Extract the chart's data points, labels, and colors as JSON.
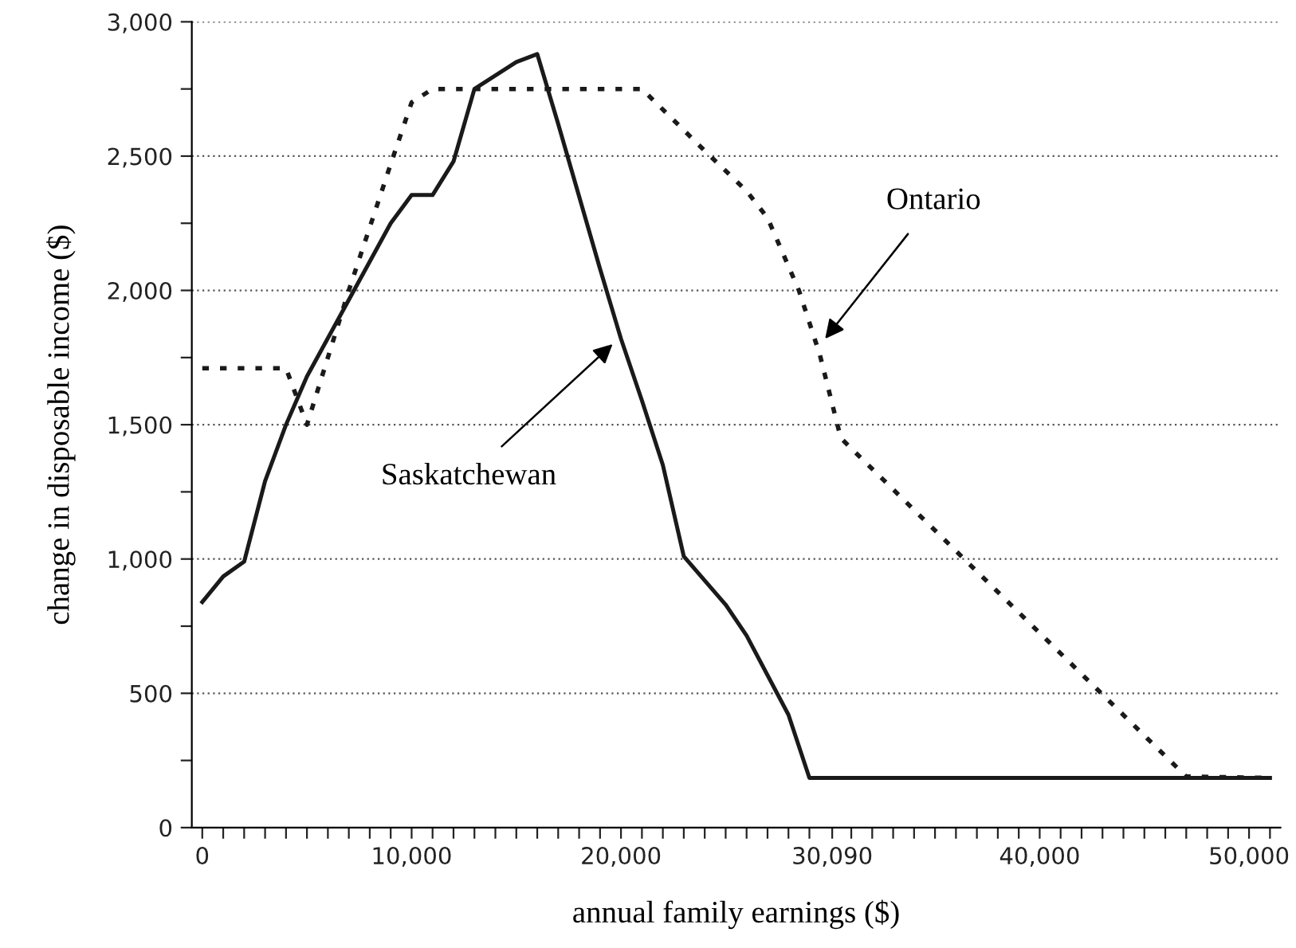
{
  "chart_data": {
    "type": "line",
    "xlabel": "annual family earnings ($)",
    "ylabel": "change in disposable income ($)",
    "xlim": [
      -500,
      51500
    ],
    "xticks": [
      {
        "value": 0,
        "label": "0"
      },
      {
        "value": 1000,
        "label": null
      },
      {
        "value": 2000,
        "label": null
      },
      {
        "value": 3000,
        "label": null
      },
      {
        "value": 4000,
        "label": null
      },
      {
        "value": 5000,
        "label": null
      },
      {
        "value": 6000,
        "label": null
      },
      {
        "value": 7000,
        "label": null
      },
      {
        "value": 8000,
        "label": null
      },
      {
        "value": 9000,
        "label": null
      },
      {
        "value": 10000,
        "label": "10,000"
      },
      {
        "value": 11000,
        "label": null
      },
      {
        "value": 12000,
        "label": null
      },
      {
        "value": 13000,
        "label": null
      },
      {
        "value": 14000,
        "label": null
      },
      {
        "value": 15000,
        "label": null
      },
      {
        "value": 16000,
        "label": null
      },
      {
        "value": 17000,
        "label": null
      },
      {
        "value": 18000,
        "label": null
      },
      {
        "value": 19000,
        "label": null
      },
      {
        "value": 20000,
        "label": "20,000"
      },
      {
        "value": 21000,
        "label": null
      },
      {
        "value": 22000,
        "label": null
      },
      {
        "value": 23000,
        "label": null
      },
      {
        "value": 24000,
        "label": null
      },
      {
        "value": 25000,
        "label": null
      },
      {
        "value": 26000,
        "label": null
      },
      {
        "value": 27000,
        "label": null
      },
      {
        "value": 28000,
        "label": null
      },
      {
        "value": 29000,
        "label": null
      },
      {
        "value": 30090,
        "label": "30,090"
      },
      {
        "value": 31000,
        "label": null
      },
      {
        "value": 32000,
        "label": null
      },
      {
        "value": 33000,
        "label": null
      },
      {
        "value": 34000,
        "label": null
      },
      {
        "value": 35000,
        "label": null
      },
      {
        "value": 36000,
        "label": null
      },
      {
        "value": 37000,
        "label": null
      },
      {
        "value": 38000,
        "label": null
      },
      {
        "value": 39000,
        "label": null
      },
      {
        "value": 40000,
        "label": "40,000"
      },
      {
        "value": 41000,
        "label": null
      },
      {
        "value": 42000,
        "label": null
      },
      {
        "value": 43000,
        "label": null
      },
      {
        "value": 44000,
        "label": null
      },
      {
        "value": 45000,
        "label": null
      },
      {
        "value": 46000,
        "label": null
      },
      {
        "value": 47000,
        "label": null
      },
      {
        "value": 48000,
        "label": null
      },
      {
        "value": 49000,
        "label": null
      },
      {
        "value": 50000,
        "label": "50,000"
      },
      {
        "value": 51000,
        "label": null
      }
    ],
    "ylim": [
      0,
      3000
    ],
    "yticks": [
      {
        "value": 0,
        "label": "0"
      },
      {
        "value": 250,
        "label": null
      },
      {
        "value": 500,
        "label": "500"
      },
      {
        "value": 750,
        "label": null
      },
      {
        "value": 1000,
        "label": "1,000"
      },
      {
        "value": 1250,
        "label": null
      },
      {
        "value": 1500,
        "label": "1,500"
      },
      {
        "value": 1750,
        "label": null
      },
      {
        "value": 2000,
        "label": "2,000"
      },
      {
        "value": 2250,
        "label": null
      },
      {
        "value": 2500,
        "label": "2,500"
      },
      {
        "value": 2750,
        "label": null
      },
      {
        "value": 3000,
        "label": "3,000"
      }
    ],
    "grid": "y",
    "legend": false,
    "marker": "none",
    "series": [
      {
        "color": "#1a1a1a",
        "line_style": "solid",
        "x": [
          0,
          1000,
          2000,
          3000,
          4000,
          5000,
          9000,
          10000,
          11000,
          12000,
          13000,
          15000,
          16000,
          17000,
          18000,
          19000,
          20000,
          21000,
          22000,
          23000,
          25000,
          26000,
          28000,
          29000,
          51000
        ],
        "values": [
          840,
          935,
          990,
          1290,
          1500,
          1680,
          2250,
          2355,
          2355,
          2480,
          2750,
          2850,
          2880,
          2620,
          2350,
          2080,
          1820,
          1590,
          1350,
          1010,
          830,
          715,
          420,
          185,
          185
        ]
      },
      {
        "color": "#1a1a1a",
        "line_style": "dotted",
        "x": [
          0,
          4000,
          5000,
          7000,
          9000,
          10000,
          11000,
          21000,
          24000,
          26000,
          27000,
          28500,
          29500,
          30500,
          47000,
          51000
        ],
        "values": [
          1710,
          1710,
          1500,
          2000,
          2470,
          2700,
          2750,
          2750,
          2520,
          2370,
          2270,
          2000,
          1760,
          1450,
          190,
          185
        ]
      }
    ],
    "annotations": [
      {
        "text": "Saskatchewan",
        "x": 19600,
        "y": 1800
      },
      {
        "text": "Ontario",
        "x": 29750,
        "y": 1820
      }
    ]
  }
}
